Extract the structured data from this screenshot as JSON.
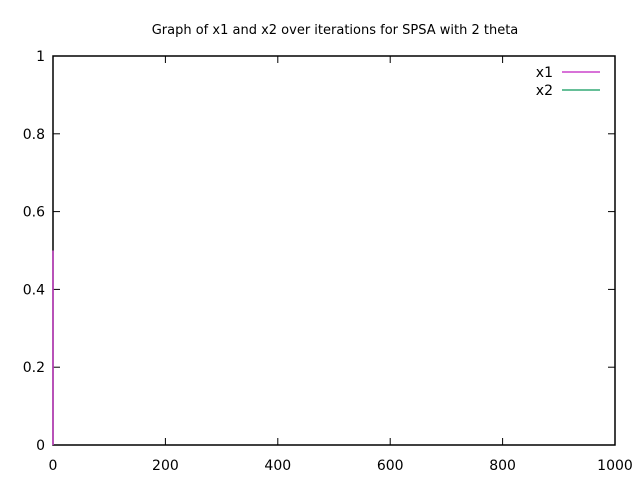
{
  "chart_data": {
    "type": "line",
    "title": "Graph of x1 and x2 over iterations for SPSA with 2 theta",
    "xlabel": "",
    "ylabel": "",
    "xlim": [
      0,
      1000
    ],
    "ylim": [
      0,
      1
    ],
    "x_ticks": [
      "0",
      "200",
      "400",
      "600",
      "800",
      "1000"
    ],
    "y_ticks": [
      "0",
      "0.2",
      "0.4",
      "0.6",
      "0.8",
      "1"
    ],
    "grid": false,
    "legend_position": "top-right",
    "series": [
      {
        "name": "x1",
        "color": "#cc44cc",
        "points": [
          [
            0,
            0
          ],
          [
            0,
            0.5
          ]
        ]
      },
      {
        "name": "x2",
        "color": "#33aa77",
        "points": []
      }
    ]
  }
}
